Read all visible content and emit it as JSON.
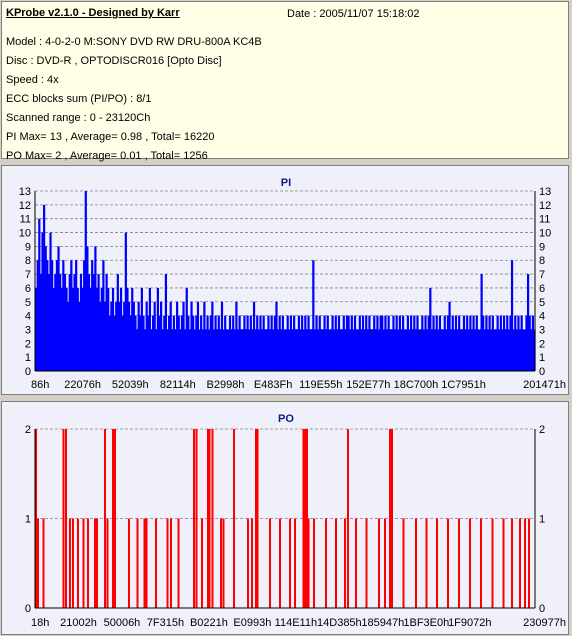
{
  "header": {
    "title": "KProbe v2.1.0 - Designed by Karr",
    "date": "Date : 2005/11/07 15:18:02",
    "lines": [
      "Model : 4-0-2-0 M:SONY    DVD RW DRU-800A  KC4B",
      "Disc : DVD-R , OPTODISCR016 [Opto Disc]",
      "Speed : 4x",
      "ECC blocks sum (PI/PO) : 8/1",
      "Scanned range : 0 - 23120Ch",
      "PI Max= 13 , Average= 0.98 , Total= 16220",
      "PO Max= 2 , Average= 0.01 , Total= 1256"
    ]
  },
  "colors": {
    "pi_bar": "#0000ff",
    "po_bar": "#ff0000",
    "plot_bg": "#f0f0fa",
    "grid": "#808080",
    "title": "#0a1a8a"
  },
  "chart_data": [
    {
      "type": "bar",
      "title": "PI",
      "ylim": [
        0,
        13
      ],
      "yticks": [
        "0",
        "1",
        "2",
        "3",
        "4",
        "5",
        "6",
        "7",
        "8",
        "9",
        "10",
        "11",
        "12",
        "13"
      ],
      "xtick_labels": [
        "86h",
        "22076h",
        "52039h",
        "82114h",
        "B2998h",
        "E483Fh",
        "119E55h",
        "152E77h",
        "18C700h",
        "1C7951h",
        "201471h"
      ],
      "grid": "dashed horizontal",
      "series": [
        {
          "color": "#0000ff",
          "values": [
            6,
            8,
            11,
            7,
            10,
            12,
            9,
            8,
            7,
            10,
            8,
            6,
            7,
            8,
            9,
            7,
            6,
            8,
            7,
            6,
            5,
            7,
            8,
            6,
            7,
            8,
            6,
            5,
            7,
            6,
            8,
            13,
            9,
            7,
            6,
            8,
            7,
            9,
            6,
            7,
            5,
            6,
            8,
            5,
            7,
            6,
            4,
            5,
            6,
            4,
            5,
            7,
            5,
            6,
            4,
            5,
            10,
            6,
            5,
            4,
            6,
            5,
            4,
            3,
            5,
            4,
            6,
            4,
            3,
            5,
            4,
            6,
            3,
            4,
            5,
            3,
            6,
            4,
            5,
            3,
            4,
            7,
            3,
            4,
            5,
            3,
            4,
            3,
            5,
            4,
            3,
            4,
            5,
            3,
            6,
            4,
            3,
            5,
            4,
            3,
            4,
            5,
            3,
            4,
            3,
            5,
            3,
            4,
            3,
            4,
            5,
            3,
            4,
            3,
            4,
            3,
            5,
            3,
            4,
            3,
            3,
            4,
            3,
            4,
            3,
            5,
            3,
            4,
            3,
            3,
            4,
            3,
            4,
            3,
            4,
            3,
            5,
            3,
            4,
            3,
            4,
            3,
            4,
            3,
            3,
            4,
            3,
            4,
            3,
            4,
            5,
            3,
            4,
            3,
            4,
            3,
            3,
            4,
            3,
            4,
            3,
            4,
            3,
            3,
            4,
            3,
            4,
            3,
            4,
            3,
            4,
            3,
            3,
            8,
            3,
            4,
            3,
            4,
            3,
            3,
            4,
            3,
            4,
            3,
            3,
            4,
            3,
            4,
            3,
            4,
            3,
            3,
            4,
            3,
            4,
            4,
            3,
            4,
            3,
            4,
            3,
            3,
            4,
            3,
            4,
            3,
            4,
            3,
            4,
            3,
            3,
            4,
            3,
            4,
            3,
            4,
            4,
            3,
            4,
            3,
            4,
            3,
            3,
            4,
            3,
            4,
            3,
            4,
            3,
            4,
            3,
            3,
            4,
            3,
            4,
            3,
            4,
            3,
            4,
            3,
            3,
            4,
            3,
            4,
            3,
            4,
            6,
            3,
            4,
            3,
            4,
            3,
            4,
            3,
            3,
            4,
            3,
            4,
            5,
            3,
            4,
            3,
            4,
            3,
            4,
            3,
            3,
            4,
            3,
            4,
            3,
            4,
            3,
            4,
            3,
            4,
            3,
            3,
            7,
            4,
            3,
            4,
            3,
            4,
            3,
            4,
            3,
            3,
            4,
            3,
            4,
            3,
            4,
            3,
            4,
            3,
            4,
            8,
            3,
            4,
            3,
            4,
            3,
            4,
            3,
            3,
            4,
            7,
            4,
            3,
            4,
            3
          ]
        }
      ]
    },
    {
      "type": "bar",
      "title": "PO",
      "ylim": [
        0,
        2
      ],
      "yticks": [
        "0",
        "1",
        "2"
      ],
      "xtick_labels": [
        "18h",
        "21002h",
        "50006h",
        "7F315h",
        "B0221h",
        "E0993h",
        "114E11h",
        "14D385h",
        "185947h",
        "1BF3E0h",
        "1F9072h",
        "230977h"
      ],
      "grid": "dashed horizontal",
      "series": [
        {
          "color": "#ff0000",
          "points": [
            [
              0,
              2
            ],
            [
              0.4,
              1
            ],
            [
              1.5,
              1
            ],
            [
              5.5,
              2
            ],
            [
              6.0,
              2
            ],
            [
              6.8,
              1
            ],
            [
              7.4,
              1
            ],
            [
              8.4,
              1
            ],
            [
              9.5,
              1
            ],
            [
              10.4,
              1
            ],
            [
              11.8,
              1
            ],
            [
              12.2,
              1
            ],
            [
              13.8,
              2
            ],
            [
              14.3,
              1
            ],
            [
              15.4,
              2
            ],
            [
              15.8,
              2
            ],
            [
              18.6,
              1
            ],
            [
              20.3,
              1
            ],
            [
              21.7,
              1
            ],
            [
              22.1,
              1
            ],
            [
              24.0,
              1
            ],
            [
              26.3,
              1
            ],
            [
              27.0,
              1
            ],
            [
              28.5,
              1
            ],
            [
              31.6,
              2
            ],
            [
              32.1,
              2
            ],
            [
              33.2,
              1
            ],
            [
              34.4,
              2
            ],
            [
              34.7,
              2
            ],
            [
              35.3,
              2
            ],
            [
              37.0,
              1
            ],
            [
              37.5,
              1
            ],
            [
              39.6,
              2
            ],
            [
              42.4,
              1
            ],
            [
              43.2,
              1
            ],
            [
              44.0,
              2
            ],
            [
              44.3,
              2
            ],
            [
              46.8,
              1
            ],
            [
              48.8,
              1
            ],
            [
              50.8,
              1
            ],
            [
              51.8,
              1
            ],
            [
              53.5,
              2
            ],
            [
              53.8,
              2
            ],
            [
              54.2,
              2
            ],
            [
              54.5,
              1
            ],
            [
              55.6,
              1
            ],
            [
              58.0,
              1
            ],
            [
              60.0,
              1
            ],
            [
              61.8,
              1
            ],
            [
              62.4,
              2
            ],
            [
              64.0,
              1
            ],
            [
              66.1,
              1
            ],
            [
              68.6,
              1
            ],
            [
              69.8,
              1
            ],
            [
              70.8,
              2
            ],
            [
              71.2,
              2
            ],
            [
              73.5,
              1
            ],
            [
              76.0,
              1
            ],
            [
              78.1,
              1
            ],
            [
              80.2,
              1
            ],
            [
              82.4,
              1
            ],
            [
              84.6,
              1
            ],
            [
              86.8,
              1
            ],
            [
              89.0,
              1
            ],
            [
              91.3,
              1
            ],
            [
              93.5,
              1
            ],
            [
              95.2,
              1
            ],
            [
              96.8,
              1
            ],
            [
              97.8,
              1
            ],
            [
              98.6,
              1
            ]
          ]
        }
      ]
    }
  ]
}
